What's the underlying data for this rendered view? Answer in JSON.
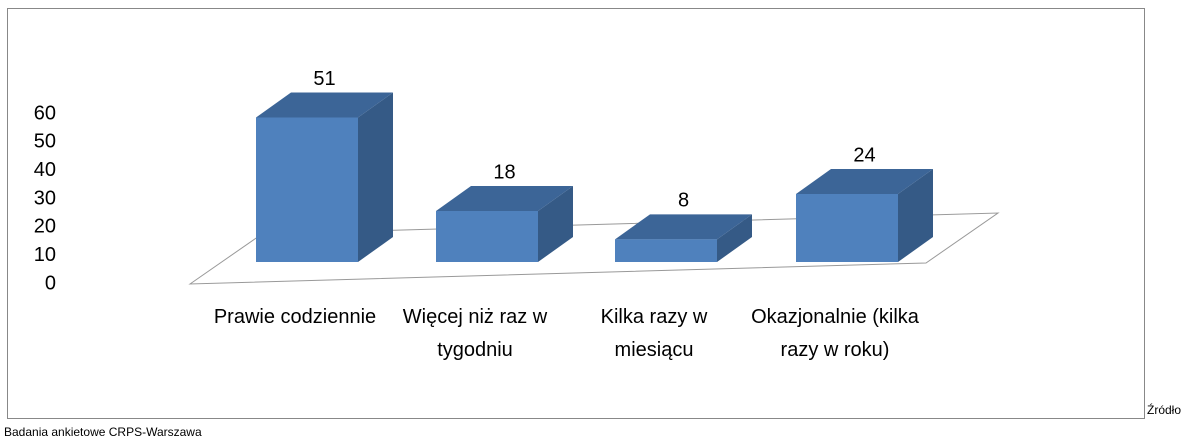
{
  "chart_data": {
    "type": "bar3d",
    "categories": [
      "Prawie codziennie",
      "Więcej niż raz w tygodniu",
      "Kilka razy w miesiącu",
      "Okazjonalnie (kilka razy w roku)"
    ],
    "values": [
      51,
      18,
      8,
      24
    ],
    "color": "#4f81bd",
    "ylim": [
      0,
      60
    ],
    "yticks": [
      0,
      10,
      20,
      30,
      40,
      50,
      60
    ],
    "grid": false,
    "annotations": [
      "Źródło",
      "Badania ankietowe CRPS-Warszawa"
    ]
  }
}
